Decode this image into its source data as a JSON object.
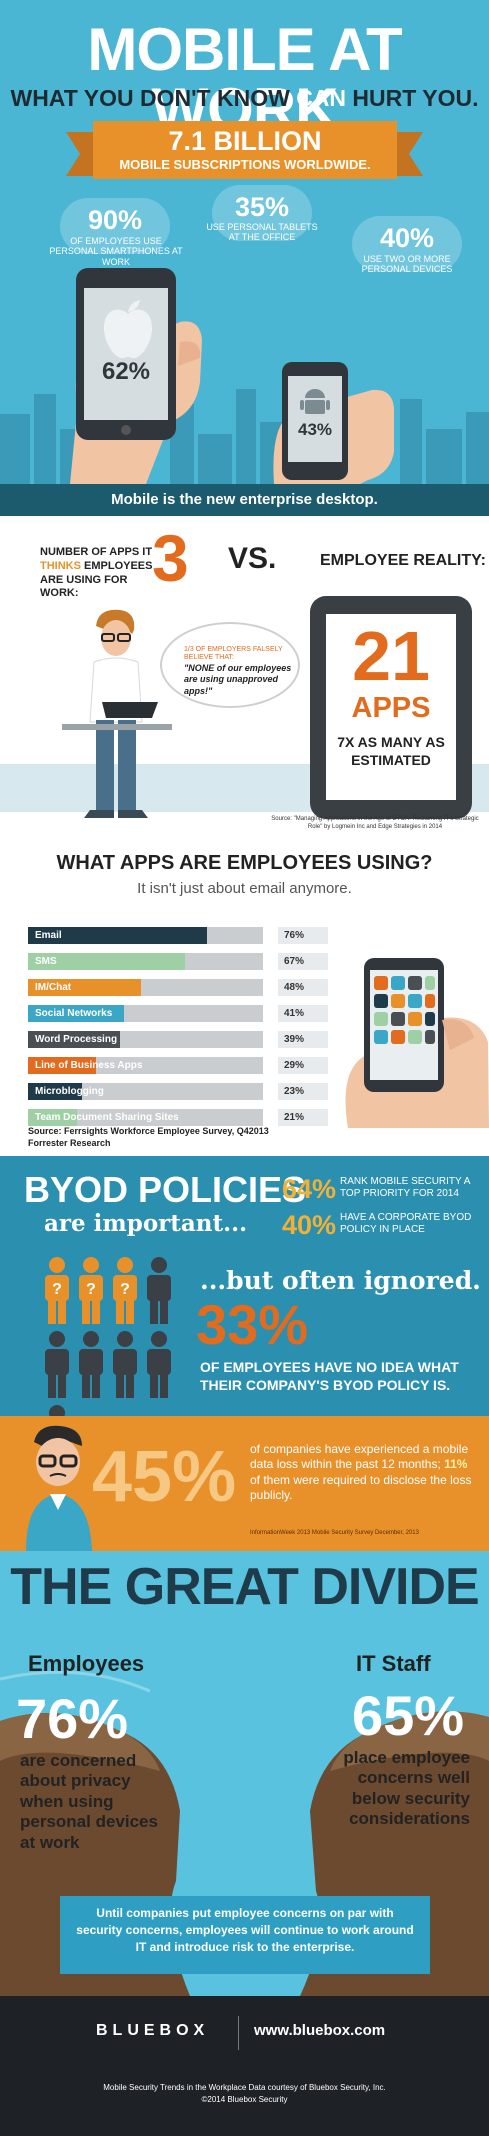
{
  "header": {
    "title": "MOBILE AT WORK",
    "subtitle_pre": "WHAT YOU DON'T KNOW ",
    "subtitle_can": "CAN",
    "subtitle_post": " HURT YOU.",
    "banner_value": "7.1 BILLION",
    "banner_label": "MOBILE SUBSCRIPTIONS WORLDWIDE."
  },
  "device_stats": [
    {
      "value": "90%",
      "label": "OF EMPLOYEES USE PERSONAL SMARTPHONES AT WORK"
    },
    {
      "value": "35%",
      "label": "USE PERSONAL TABLETS AT THE OFFICE"
    },
    {
      "value": "40%",
      "label": "USE TWO OR MORE PERSONAL DEVICES"
    }
  ],
  "phones": {
    "apple_share": "62%",
    "android_share": "43%"
  },
  "desktop_banner": "Mobile is the new enterprise desktop.",
  "apps_compare": {
    "it_label_pre": "NUMBER OF APPS IT ",
    "it_label_thinks": "THINKS",
    "it_label_post": " EMPLOYEES ARE USING FOR WORK:",
    "it_number": "3",
    "vs": "VS.",
    "reality_label": "EMPLOYEE REALITY:",
    "reality_number": "21",
    "reality_unit": "APPS",
    "multiplier": "7X AS MANY AS ESTIMATED",
    "bubble_small": "1/3 OF EMPLOYERS FALSELY BELIEVE THAT:",
    "bubble_quote": "\"NONE of our employees are using unapproved apps!\"",
    "source": "Source: \"Managing Applications in the Age of BYOA: Reclaiming IT's Strategic Role\" by Logmein Inc and Edge Strategies in 2014"
  },
  "apps_usage": {
    "title": "WHAT APPS ARE EMPLOYEES USING?",
    "subtitle": "It isn't just about email anymore.",
    "source": "Source: Ferrsights Workforce Employee Survey, Q42013 Forrester Research"
  },
  "chart_data": {
    "type": "bar",
    "title": "WHAT APPS ARE EMPLOYEES USING?",
    "categories": [
      "Email",
      "SMS",
      "IM/Chat",
      "Social Networks",
      "Word Processing",
      "Line of Business Apps",
      "Microblogging",
      "Team Document Sharing Sites"
    ],
    "values": [
      76,
      67,
      48,
      41,
      39,
      29,
      23,
      21
    ],
    "value_labels": [
      "76%",
      "67%",
      "48%",
      "41%",
      "39%",
      "29%",
      "23%",
      "21%"
    ],
    "ylim": [
      0,
      100
    ],
    "colors": [
      "#1f3b4a",
      "#9fd0a5",
      "#e8912b",
      "#3aa7c7",
      "#4a4f54",
      "#e26b1e",
      "#1f3b4a",
      "#9fd0a5"
    ]
  },
  "byod": {
    "title": "BYOD POLICIES",
    "subtitle": "are important...",
    "stat1_value": "64%",
    "stat1_label": "RANK MOBILE SECURITY A TOP PRIORITY FOR 2014",
    "stat2_value": "40%",
    "stat2_label": "HAVE A CORPORATE BYOD POLICY IN PLACE",
    "ignored": "...but often ignored.",
    "stat3_value": "33%",
    "stat3_label": "OF EMPLOYEES HAVE NO IDEA WHAT THEIR COMPANY'S BYOD POLICY IS.",
    "people_unknown": 3,
    "people_total": 9
  },
  "data_loss": {
    "value": "45%",
    "text_pre": "of companies have experienced a mobile data loss within the past 12 months; ",
    "text_hl": "11%",
    "text_post": " of them were required to disclose the loss publicly.",
    "source": "InformationWeek 2013 Mobile Security Survey December, 2013"
  },
  "divide": {
    "title": "THE GREAT DIVIDE",
    "employees_label": "Employees",
    "employees_value": "76%",
    "employees_text": "are concerned about privacy when using personal devices at work",
    "it_label": "IT Staff",
    "it_value": "65%",
    "it_text": "place employee concerns well below security considerations",
    "message": "Until companies put employee concerns on par with security concerns, employees will continue to work around IT and introduce risk to the enterprise."
  },
  "footer": {
    "logo": "BLUEBOX",
    "url": "www.bluebox.com",
    "credit_line1": "Mobile Security Trends in the Workplace Data courtesy of Bluebox Security, Inc.",
    "credit_line2": "©2014 Bluebox Security"
  }
}
